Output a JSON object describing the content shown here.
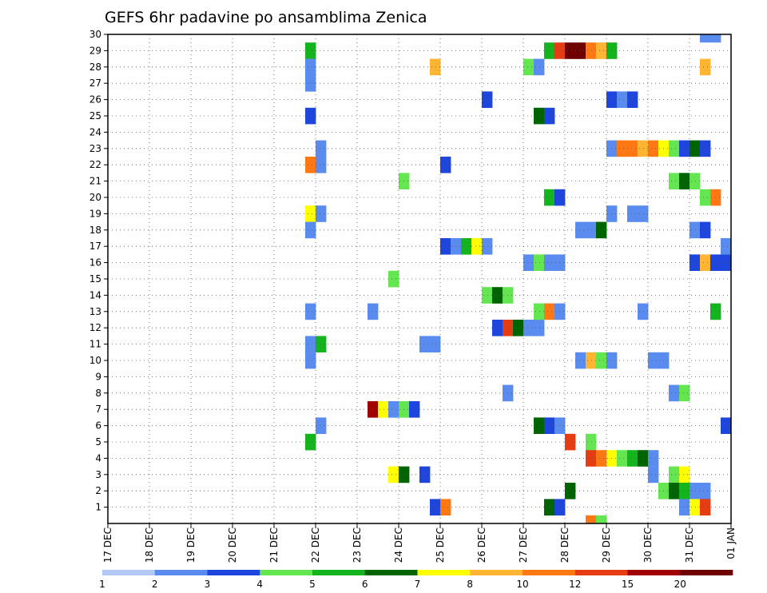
{
  "chart_data": {
    "type": "heatmap",
    "title": "GEFS 6hr padavine po ansamblima Zenica",
    "xlabel": "",
    "ylabel": "",
    "x_ticks": [
      "17 DEC",
      "18 DEC",
      "19 DEC",
      "20 DEC",
      "21 DEC",
      "22 DEC",
      "23 DEC",
      "24 DEC",
      "25 DEC",
      "26 DEC",
      "27 DEC",
      "28 DEC",
      "29 DEC",
      "30 DEC",
      "31 DEC",
      "01 JAN"
    ],
    "xlim": [
      0,
      15
    ],
    "ylim": [
      0,
      30
    ],
    "y_ticks": [
      1,
      2,
      3,
      4,
      5,
      6,
      7,
      8,
      9,
      10,
      11,
      12,
      13,
      14,
      15,
      16,
      17,
      18,
      19,
      20,
      21,
      22,
      23,
      24,
      25,
      26,
      27,
      28,
      29,
      30
    ],
    "x_unit": "days since 17 DEC 00z, 6-hourly steps",
    "grid": true,
    "colorbar": {
      "labels": [
        "1",
        "2",
        "3",
        "4",
        "5",
        "6",
        "7",
        "8",
        "10",
        "12",
        "15",
        "20"
      ],
      "colors": [
        "#b4c8f5",
        "#5a8cf0",
        "#1e46dc",
        "#64e650",
        "#14b41e",
        "#006400",
        "#ffff00",
        "#ffb432",
        "#ff7814",
        "#e63c14",
        "#a00000",
        "#6e0000"
      ]
    },
    "cells": [
      {
        "m": 29,
        "t": 4.75,
        "c": 4
      },
      {
        "m": 28,
        "t": 4.75,
        "c": 1
      },
      {
        "m": 27,
        "t": 4.75,
        "c": 1
      },
      {
        "m": 25,
        "t": 4.75,
        "c": 2
      },
      {
        "m": 23,
        "t": 5.0,
        "c": 1
      },
      {
        "m": 22,
        "t": 4.75,
        "c": 8
      },
      {
        "m": 22,
        "t": 5.0,
        "c": 1
      },
      {
        "m": 19,
        "t": 4.75,
        "c": 6
      },
      {
        "m": 19,
        "t": 5.0,
        "c": 1
      },
      {
        "m": 18,
        "t": 4.75,
        "c": 1
      },
      {
        "m": 13,
        "t": 4.75,
        "c": 1
      },
      {
        "m": 11,
        "t": 4.75,
        "c": 1
      },
      {
        "m": 11,
        "t": 5.0,
        "c": 4
      },
      {
        "m": 10,
        "t": 4.75,
        "c": 1
      },
      {
        "m": 6,
        "t": 5.0,
        "c": 1
      },
      {
        "m": 5,
        "t": 4.75,
        "c": 4
      },
      {
        "m": 13,
        "t": 6.25,
        "c": 1
      },
      {
        "m": 7,
        "t": 6.25,
        "c": 10
      },
      {
        "m": 7,
        "t": 6.5,
        "c": 6
      },
      {
        "m": 7,
        "t": 6.75,
        "c": 1
      },
      {
        "m": 7,
        "t": 7.0,
        "c": 3
      },
      {
        "m": 7,
        "t": 7.25,
        "c": 2
      },
      {
        "m": 3,
        "t": 6.75,
        "c": 6
      },
      {
        "m": 3,
        "t": 7.0,
        "c": 5
      },
      {
        "m": 3,
        "t": 7.5,
        "c": 2
      },
      {
        "m": 21,
        "t": 7.0,
        "c": 3
      },
      {
        "m": 15,
        "t": 6.75,
        "c": 3
      },
      {
        "m": 11,
        "t": 7.5,
        "c": 1
      },
      {
        "m": 11,
        "t": 7.75,
        "c": 1
      },
      {
        "m": 28,
        "t": 7.75,
        "c": 7
      },
      {
        "m": 22,
        "t": 8.0,
        "c": 2
      },
      {
        "m": 17,
        "t": 8.0,
        "c": 2
      },
      {
        "m": 17,
        "t": 8.25,
        "c": 1
      },
      {
        "m": 17,
        "t": 8.5,
        "c": 4
      },
      {
        "m": 17,
        "t": 8.75,
        "c": 6
      },
      {
        "m": 17,
        "t": 9.0,
        "c": 1
      },
      {
        "m": 26,
        "t": 9.0,
        "c": 2
      },
      {
        "m": 14,
        "t": 9.0,
        "c": 3
      },
      {
        "m": 14,
        "t": 9.25,
        "c": 5
      },
      {
        "m": 14,
        "t": 9.5,
        "c": 3
      },
      {
        "m": 12,
        "t": 9.25,
        "c": 2
      },
      {
        "m": 12,
        "t": 9.5,
        "c": 9
      },
      {
        "m": 12,
        "t": 9.75,
        "c": 5
      },
      {
        "m": 12,
        "t": 10.0,
        "c": 1
      },
      {
        "m": 12,
        "t": 10.25,
        "c": 1
      },
      {
        "m": 8,
        "t": 9.5,
        "c": 1
      },
      {
        "m": 1,
        "t": 7.75,
        "c": 2
      },
      {
        "m": 1,
        "t": 8.0,
        "c": 8
      },
      {
        "m": 29,
        "t": 10.5,
        "c": 4
      },
      {
        "m": 29,
        "t": 10.75,
        "c": 9
      },
      {
        "m": 29,
        "t": 11.0,
        "c": 11
      },
      {
        "m": 29,
        "t": 11.25,
        "c": 11
      },
      {
        "m": 29,
        "t": 11.5,
        "c": 8
      },
      {
        "m": 29,
        "t": 11.75,
        "c": 7
      },
      {
        "m": 29,
        "t": 12.0,
        "c": 4
      },
      {
        "m": 28,
        "t": 10.0,
        "c": 3
      },
      {
        "m": 28,
        "t": 10.25,
        "c": 1
      },
      {
        "m": 25,
        "t": 10.25,
        "c": 5
      },
      {
        "m": 25,
        "t": 10.5,
        "c": 2
      },
      {
        "m": 20,
        "t": 10.5,
        "c": 4
      },
      {
        "m": 20,
        "t": 10.75,
        "c": 2
      },
      {
        "m": 16,
        "t": 10.0,
        "c": 1
      },
      {
        "m": 16,
        "t": 10.25,
        "c": 3
      },
      {
        "m": 16,
        "t": 10.5,
        "c": 1
      },
      {
        "m": 16,
        "t": 10.75,
        "c": 1
      },
      {
        "m": 13,
        "t": 10.25,
        "c": 3
      },
      {
        "m": 13,
        "t": 10.5,
        "c": 8
      },
      {
        "m": 13,
        "t": 10.75,
        "c": 1
      },
      {
        "m": 6,
        "t": 10.25,
        "c": 5
      },
      {
        "m": 6,
        "t": 10.5,
        "c": 2
      },
      {
        "m": 6,
        "t": 10.75,
        "c": 1
      },
      {
        "m": 2,
        "t": 11.0,
        "c": 5
      },
      {
        "m": 1,
        "t": 10.5,
        "c": 5
      },
      {
        "m": 1,
        "t": 10.75,
        "c": 2
      },
      {
        "m": 5,
        "t": 11.0,
        "c": 9
      },
      {
        "m": 5,
        "t": 11.5,
        "c": 3
      },
      {
        "m": 4,
        "t": 11.5,
        "c": 9
      },
      {
        "m": 4,
        "t": 11.75,
        "c": 8
      },
      {
        "m": 4,
        "t": 12.0,
        "c": 6
      },
      {
        "m": 4,
        "t": 12.25,
        "c": 3
      },
      {
        "m": 4,
        "t": 12.5,
        "c": 4
      },
      {
        "m": 4,
        "t": 12.75,
        "c": 5
      },
      {
        "m": 4,
        "t": 13.0,
        "c": 1
      },
      {
        "m": 3,
        "t": 13.0,
        "c": 1
      },
      {
        "m": 0,
        "t": 11.5,
        "c": 8
      },
      {
        "m": 0,
        "t": 11.75,
        "c": 3
      },
      {
        "m": 18,
        "t": 11.25,
        "c": 1
      },
      {
        "m": 18,
        "t": 11.5,
        "c": 1
      },
      {
        "m": 18,
        "t": 11.75,
        "c": 5
      },
      {
        "m": 19,
        "t": 12.0,
        "c": 1
      },
      {
        "m": 19,
        "t": 12.5,
        "c": 1
      },
      {
        "m": 19,
        "t": 12.75,
        "c": 1
      },
      {
        "m": 13,
        "t": 12.75,
        "c": 1
      },
      {
        "m": 10,
        "t": 11.25,
        "c": 1
      },
      {
        "m": 10,
        "t": 11.5,
        "c": 7
      },
      {
        "m": 10,
        "t": 11.75,
        "c": 3
      },
      {
        "m": 10,
        "t": 12.0,
        "c": 1
      },
      {
        "m": 10,
        "t": 13.0,
        "c": 1
      },
      {
        "m": 10,
        "t": 13.25,
        "c": 1
      },
      {
        "m": 26,
        "t": 12.0,
        "c": 2
      },
      {
        "m": 26,
        "t": 12.25,
        "c": 1
      },
      {
        "m": 26,
        "t": 12.5,
        "c": 2
      },
      {
        "m": 23,
        "t": 12.0,
        "c": 1
      },
      {
        "m": 23,
        "t": 12.25,
        "c": 8
      },
      {
        "m": 23,
        "t": 12.5,
        "c": 8
      },
      {
        "m": 23,
        "t": 12.75,
        "c": 7
      },
      {
        "m": 23,
        "t": 13.0,
        "c": 8
      },
      {
        "m": 23,
        "t": 13.25,
        "c": 6
      },
      {
        "m": 23,
        "t": 13.5,
        "c": 3
      },
      {
        "m": 23,
        "t": 13.75,
        "c": 2
      },
      {
        "m": 23,
        "t": 14.0,
        "c": 5
      },
      {
        "m": 23,
        "t": 14.25,
        "c": 2
      },
      {
        "m": 21,
        "t": 13.5,
        "c": 3
      },
      {
        "m": 21,
        "t": 13.75,
        "c": 5
      },
      {
        "m": 21,
        "t": 14.0,
        "c": 3
      },
      {
        "m": 20,
        "t": 14.25,
        "c": 3
      },
      {
        "m": 20,
        "t": 14.5,
        "c": 8
      },
      {
        "m": 18,
        "t": 14.0,
        "c": 1
      },
      {
        "m": 18,
        "t": 14.25,
        "c": 2
      },
      {
        "m": 16,
        "t": 14.0,
        "c": 2
      },
      {
        "m": 16,
        "t": 14.25,
        "c": 7
      },
      {
        "m": 16,
        "t": 14.5,
        "c": 2
      },
      {
        "m": 16,
        "t": 14.75,
        "c": 2
      },
      {
        "m": 17,
        "t": 14.75,
        "c": 1
      },
      {
        "m": 13,
        "t": 14.5,
        "c": 4
      },
      {
        "m": 8,
        "t": 13.5,
        "c": 1
      },
      {
        "m": 8,
        "t": 13.75,
        "c": 3
      },
      {
        "m": 3,
        "t": 13.5,
        "c": 3
      },
      {
        "m": 3,
        "t": 13.75,
        "c": 6
      },
      {
        "m": 2,
        "t": 13.25,
        "c": 3
      },
      {
        "m": 2,
        "t": 13.5,
        "c": 5
      },
      {
        "m": 2,
        "t": 13.75,
        "c": 4
      },
      {
        "m": 2,
        "t": 14.0,
        "c": 1
      },
      {
        "m": 2,
        "t": 14.25,
        "c": 1
      },
      {
        "m": 1,
        "t": 13.75,
        "c": 1
      },
      {
        "m": 1,
        "t": 14.0,
        "c": 6
      },
      {
        "m": 1,
        "t": 14.25,
        "c": 9
      },
      {
        "m": 6,
        "t": 14.75,
        "c": 2
      },
      {
        "m": 30,
        "t": 14.25,
        "c": 1
      },
      {
        "m": 30,
        "t": 14.5,
        "c": 1
      },
      {
        "m": 28,
        "t": 14.25,
        "c": 7
      }
    ]
  }
}
